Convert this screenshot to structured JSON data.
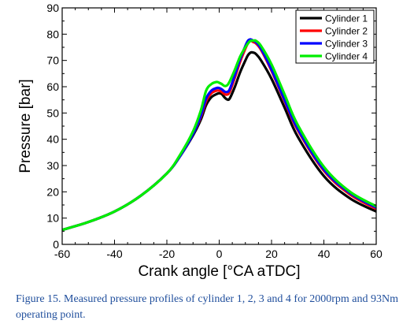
{
  "chart_data": {
    "type": "line",
    "xlabel": "Crank angle [°CA aTDC]",
    "ylabel": "Pressure [bar]",
    "xlim": [
      -60,
      60
    ],
    "ylim": [
      0,
      90
    ],
    "xticks": [
      -60,
      -40,
      -20,
      0,
      20,
      40,
      60
    ],
    "yticks": [
      0,
      10,
      20,
      30,
      40,
      50,
      60,
      70,
      80,
      90
    ],
    "grid": false,
    "legend_position": "top-right",
    "series": [
      {
        "name": "Cylinder 1",
        "color": "#000000",
        "x": [
          -60,
          -50,
          -40,
          -30,
          -20,
          -15,
          -10,
          -7,
          -5,
          -3,
          -1,
          0,
          1,
          2,
          3,
          4,
          6,
          8,
          10,
          11,
          12,
          13,
          14,
          16,
          20,
          25,
          30,
          40,
          50,
          60
        ],
        "y": [
          5.5,
          8.5,
          12.5,
          18.5,
          27.0,
          33.5,
          41.5,
          47.5,
          53.0,
          56.0,
          57.2,
          57.5,
          57.2,
          56.0,
          55.2,
          55.5,
          60.0,
          65.5,
          70.0,
          72.0,
          73.0,
          73.0,
          72.5,
          70.0,
          63.0,
          52.0,
          41.0,
          26.0,
          17.5,
          12.5
        ]
      },
      {
        "name": "Cylinder 2",
        "color": "#ff0000",
        "x": [
          -60,
          -50,
          -40,
          -30,
          -20,
          -15,
          -10,
          -7,
          -5,
          -3,
          -1,
          0,
          1,
          2,
          3,
          4,
          6,
          8,
          10,
          11,
          12,
          13,
          14,
          16,
          20,
          25,
          30,
          40,
          50,
          60
        ],
        "y": [
          5.5,
          8.5,
          12.5,
          18.5,
          27.0,
          33.5,
          42.0,
          48.5,
          54.5,
          57.5,
          58.5,
          58.5,
          58.0,
          57.2,
          57.0,
          58.0,
          63.5,
          69.5,
          74.5,
          76.5,
          77.5,
          77.0,
          76.5,
          74.0,
          66.0,
          54.5,
          43.5,
          28.0,
          19.0,
          13.5
        ]
      },
      {
        "name": "Cylinder 3",
        "color": "#0000ff",
        "x": [
          -60,
          -50,
          -40,
          -30,
          -20,
          -15,
          -10,
          -7,
          -5,
          -3,
          -1,
          0,
          1,
          2,
          3,
          4,
          6,
          8,
          10,
          11,
          12,
          13,
          14,
          16,
          20,
          25,
          30,
          40,
          50,
          60
        ],
        "y": [
          5.5,
          8.5,
          12.5,
          18.5,
          27.0,
          33.5,
          42.0,
          49.0,
          55.5,
          58.5,
          59.5,
          59.5,
          59.0,
          58.2,
          58.0,
          59.0,
          64.5,
          70.5,
          75.5,
          77.5,
          78.0,
          77.5,
          77.0,
          74.5,
          66.5,
          55.0,
          44.0,
          28.5,
          19.5,
          14.0
        ]
      },
      {
        "name": "Cylinder 4",
        "color": "#00ee00",
        "x": [
          -60,
          -50,
          -40,
          -30,
          -20,
          -15,
          -10,
          -7,
          -5,
          -3,
          -1,
          0,
          1,
          2,
          3,
          4,
          6,
          8,
          10,
          11,
          12,
          13,
          14,
          16,
          20,
          25,
          30,
          40,
          50,
          60
        ],
        "y": [
          5.5,
          8.5,
          12.5,
          18.5,
          27.0,
          34.0,
          43.0,
          51.0,
          58.5,
          61.0,
          61.8,
          61.5,
          61.0,
          60.3,
          60.5,
          62.0,
          66.5,
          71.5,
          75.0,
          76.5,
          77.5,
          77.5,
          77.5,
          75.5,
          68.5,
          57.0,
          45.5,
          29.5,
          20.0,
          14.5
        ]
      }
    ]
  },
  "caption": {
    "text": "Figure 15. Measured pressure profiles of cylinder 1, 2, 3 and 4 for 2000rpm and 93Nm operating point."
  }
}
